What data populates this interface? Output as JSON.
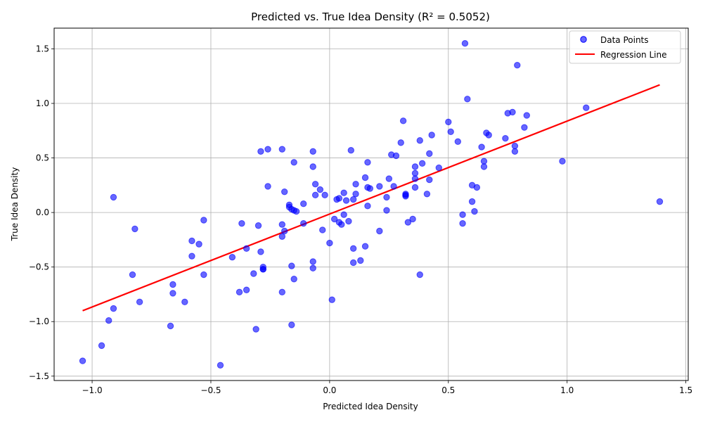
{
  "chart_data": {
    "type": "scatter",
    "title": "Predicted vs. True Idea Density (R² = 0.5052)",
    "xlabel": "Predicted Idea Density",
    "ylabel": "True Idea Density",
    "xlim": [
      -1.16,
      1.51
    ],
    "ylim": [
      -1.54,
      1.69
    ],
    "xticks": [
      -1.0,
      -0.5,
      0.0,
      0.5,
      1.0,
      1.5
    ],
    "xtick_labels": [
      "−1.0",
      "−0.5",
      "0.0",
      "0.5",
      "1.0",
      "1.5"
    ],
    "yticks": [
      -1.5,
      -1.0,
      -0.5,
      0.0,
      0.5,
      1.0,
      1.5
    ],
    "ytick_labels": [
      "−1.5",
      "−1.0",
      "−0.5",
      "0.0",
      "0.5",
      "1.0",
      "1.5"
    ],
    "grid": true,
    "legend_position": "top-right",
    "colors": {
      "points": "#0000ff",
      "line": "#ff0000",
      "grid": "#b0b0b0"
    },
    "series": [
      {
        "name": "Data Points",
        "type": "scatter",
        "points": [
          [
            -1.04,
            -1.36
          ],
          [
            -0.96,
            -1.22
          ],
          [
            -0.93,
            -0.99
          ],
          [
            -0.91,
            -0.88
          ],
          [
            -0.91,
            0.14
          ],
          [
            -0.83,
            -0.57
          ],
          [
            -0.82,
            -0.15
          ],
          [
            -0.8,
            -0.82
          ],
          [
            -0.67,
            -1.04
          ],
          [
            -0.66,
            -0.74
          ],
          [
            -0.66,
            -0.66
          ],
          [
            -0.61,
            -0.82
          ],
          [
            -0.58,
            -0.4
          ],
          [
            -0.58,
            -0.26
          ],
          [
            -0.55,
            -0.29
          ],
          [
            -0.53,
            -0.07
          ],
          [
            -0.53,
            -0.57
          ],
          [
            -0.46,
            -1.4
          ],
          [
            -0.41,
            -0.41
          ],
          [
            -0.38,
            -0.73
          ],
          [
            -0.37,
            -0.1
          ],
          [
            -0.35,
            -0.71
          ],
          [
            -0.35,
            -0.33
          ],
          [
            -0.32,
            -0.56
          ],
          [
            -0.31,
            -1.07
          ],
          [
            -0.3,
            -0.12
          ],
          [
            -0.29,
            -0.36
          ],
          [
            -0.29,
            0.56
          ],
          [
            -0.28,
            -0.5
          ],
          [
            -0.28,
            -0.52
          ],
          [
            -0.28,
            -0.52
          ],
          [
            -0.26,
            0.58
          ],
          [
            -0.26,
            0.24
          ],
          [
            -0.2,
            0.58
          ],
          [
            -0.2,
            -0.22
          ],
          [
            -0.2,
            -0.73
          ],
          [
            -0.2,
            -0.11
          ],
          [
            -0.19,
            -0.17
          ],
          [
            -0.19,
            0.19
          ],
          [
            -0.17,
            0.07
          ],
          [
            -0.17,
            0.05
          ],
          [
            -0.16,
            -0.49
          ],
          [
            -0.16,
            0.03
          ],
          [
            -0.16,
            -1.03
          ],
          [
            -0.15,
            0.46
          ],
          [
            -0.15,
            0.02
          ],
          [
            -0.15,
            -0.61
          ],
          [
            -0.14,
            0.01
          ],
          [
            -0.11,
            -0.1
          ],
          [
            -0.11,
            0.08
          ],
          [
            -0.07,
            0.56
          ],
          [
            -0.07,
            0.42
          ],
          [
            -0.07,
            -0.45
          ],
          [
            -0.07,
            -0.51
          ],
          [
            -0.06,
            0.26
          ],
          [
            -0.06,
            0.16
          ],
          [
            -0.04,
            0.21
          ],
          [
            -0.03,
            -0.16
          ],
          [
            -0.02,
            0.16
          ],
          [
            0.0,
            -0.28
          ],
          [
            0.01,
            -0.8
          ],
          [
            0.02,
            -0.06
          ],
          [
            0.03,
            0.12
          ],
          [
            0.04,
            0.13
          ],
          [
            0.04,
            -0.09
          ],
          [
            0.05,
            -0.11
          ],
          [
            0.06,
            0.18
          ],
          [
            0.06,
            -0.02
          ],
          [
            0.07,
            0.11
          ],
          [
            0.08,
            -0.08
          ],
          [
            0.09,
            0.57
          ],
          [
            0.1,
            -0.33
          ],
          [
            0.1,
            -0.46
          ],
          [
            0.1,
            0.12
          ],
          [
            0.11,
            0.26
          ],
          [
            0.11,
            0.17
          ],
          [
            0.13,
            -0.44
          ],
          [
            0.15,
            0.32
          ],
          [
            0.15,
            -0.31
          ],
          [
            0.16,
            0.46
          ],
          [
            0.16,
            0.06
          ],
          [
            0.16,
            0.23
          ],
          [
            0.17,
            0.22
          ],
          [
            0.21,
            0.24
          ],
          [
            0.21,
            -0.17
          ],
          [
            0.24,
            0.02
          ],
          [
            0.24,
            0.14
          ],
          [
            0.25,
            0.31
          ],
          [
            0.26,
            0.53
          ],
          [
            0.27,
            0.24
          ],
          [
            0.28,
            0.52
          ],
          [
            0.3,
            0.64
          ],
          [
            0.31,
            0.84
          ],
          [
            0.32,
            0.17
          ],
          [
            0.32,
            0.15
          ],
          [
            0.32,
            0.16
          ],
          [
            0.33,
            -0.09
          ],
          [
            0.35,
            -0.06
          ],
          [
            0.36,
            0.23
          ],
          [
            0.36,
            0.42
          ],
          [
            0.36,
            0.36
          ],
          [
            0.36,
            0.31
          ],
          [
            0.38,
            0.66
          ],
          [
            0.38,
            -0.57
          ],
          [
            0.39,
            0.45
          ],
          [
            0.41,
            0.17
          ],
          [
            0.42,
            0.54
          ],
          [
            0.42,
            0.3
          ],
          [
            0.43,
            0.71
          ],
          [
            0.46,
            0.41
          ],
          [
            0.5,
            0.83
          ],
          [
            0.51,
            0.74
          ],
          [
            0.54,
            0.65
          ],
          [
            0.56,
            -0.02
          ],
          [
            0.56,
            -0.1
          ],
          [
            0.57,
            1.55
          ],
          [
            0.58,
            1.04
          ],
          [
            0.6,
            0.25
          ],
          [
            0.6,
            0.1
          ],
          [
            0.61,
            0.01
          ],
          [
            0.62,
            0.23
          ],
          [
            0.64,
            0.6
          ],
          [
            0.65,
            0.47
          ],
          [
            0.65,
            0.42
          ],
          [
            0.66,
            0.73
          ],
          [
            0.67,
            0.71
          ],
          [
            0.74,
            0.68
          ],
          [
            0.75,
            0.91
          ],
          [
            0.77,
            0.92
          ],
          [
            0.78,
            0.61
          ],
          [
            0.78,
            0.56
          ],
          [
            0.79,
            1.35
          ],
          [
            0.82,
            0.78
          ],
          [
            0.83,
            0.89
          ],
          [
            0.98,
            0.47
          ],
          [
            1.08,
            0.96
          ],
          [
            1.39,
            0.1
          ]
        ]
      },
      {
        "name": "Regression Line",
        "type": "line",
        "x": [
          -1.04,
          1.39
        ],
        "y": [
          -0.9,
          1.17
        ]
      }
    ]
  }
}
